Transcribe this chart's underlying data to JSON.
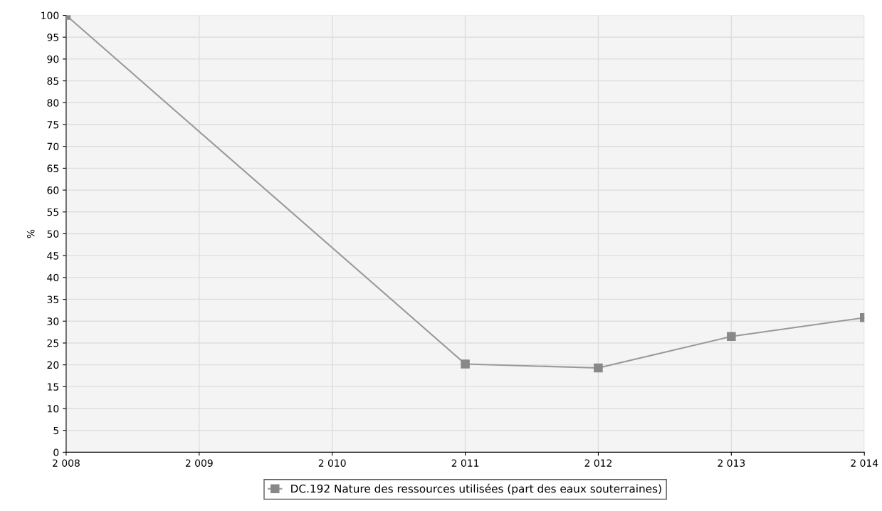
{
  "chart_data": {
    "type": "line",
    "ylabel": "%",
    "categories": [
      "2 008",
      "2 009",
      "2 010",
      "2 011",
      "2 012",
      "2 013",
      "2 014"
    ],
    "series": [
      {
        "name": "DC.192 Nature des ressources utilisées (part des eaux souterraines)",
        "color": "#999999",
        "values": [
          100,
          null,
          null,
          20.2,
          19.3,
          26.5,
          30.8
        ]
      }
    ],
    "ylim": [
      0,
      100
    ],
    "yticks": [
      0,
      5,
      10,
      15,
      20,
      25,
      30,
      35,
      40,
      45,
      50,
      55,
      60,
      65,
      70,
      75,
      80,
      85,
      90,
      95,
      100
    ],
    "grid": true,
    "legend": "bottom",
    "marker": "square",
    "line_style": "solid"
  }
}
